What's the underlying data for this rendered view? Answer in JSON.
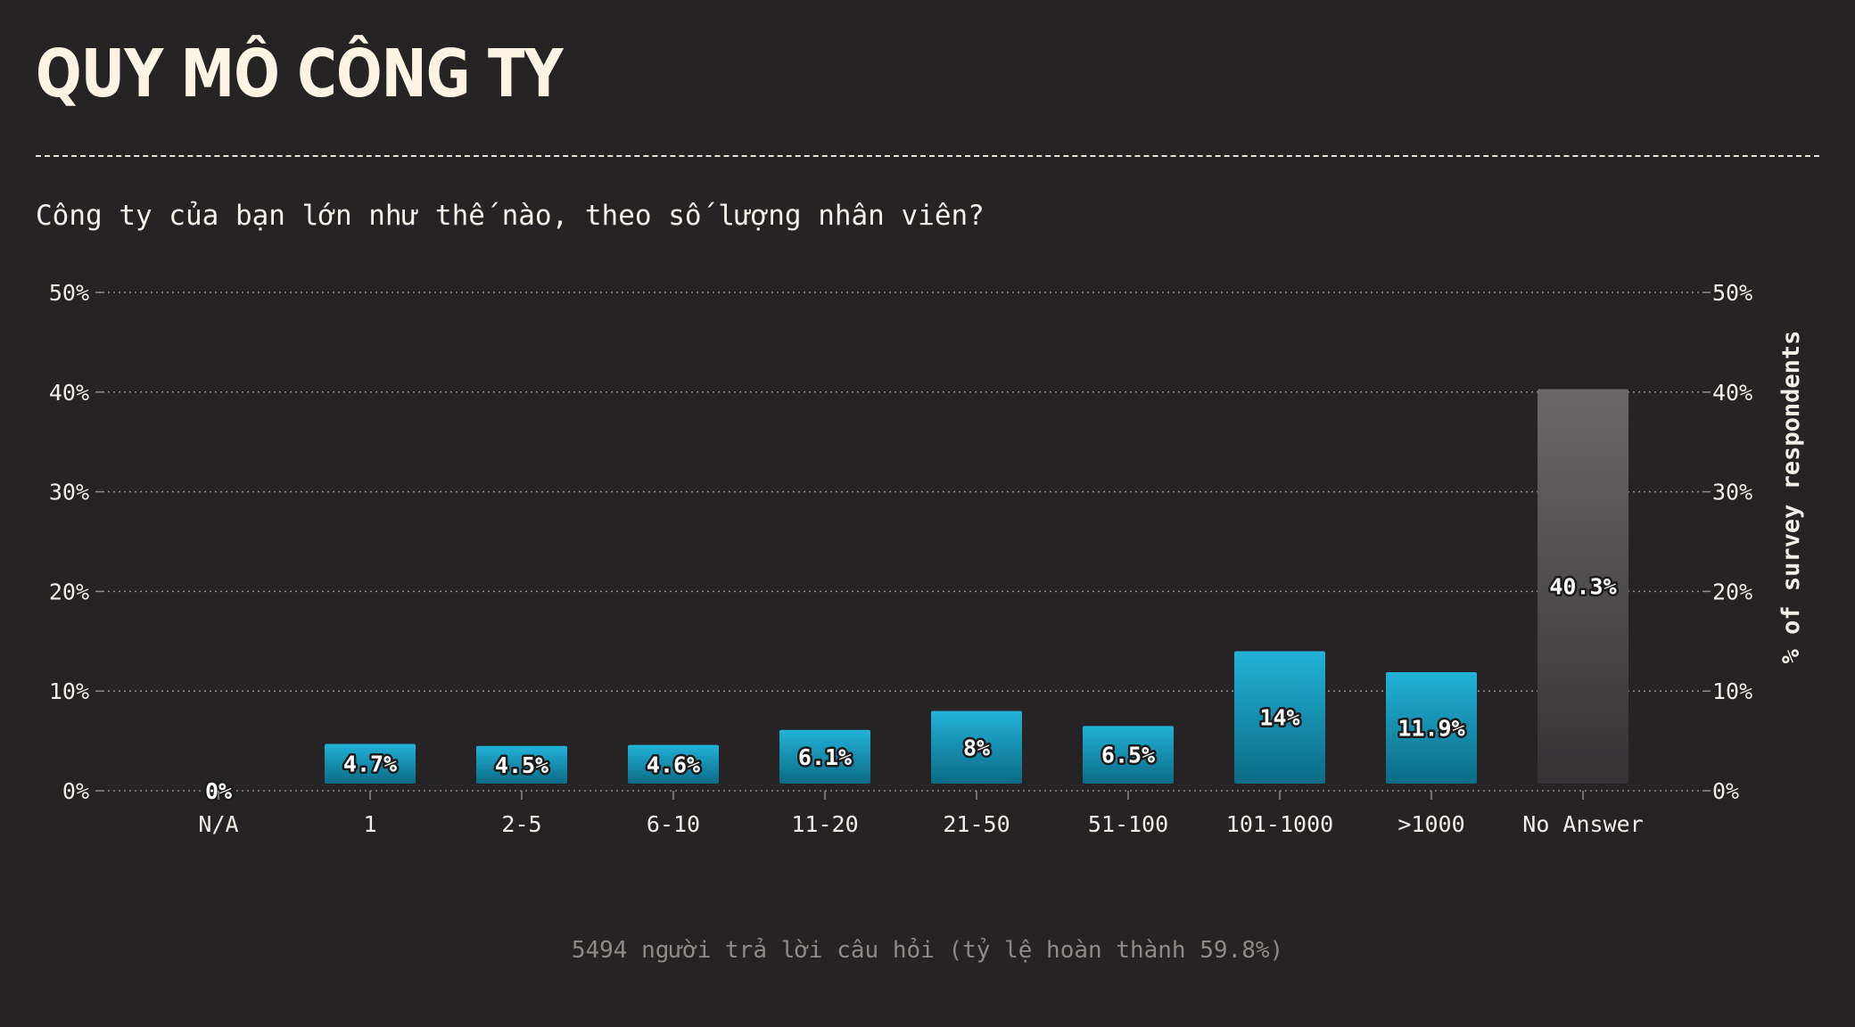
{
  "header": {
    "title": "QUY MÔ CÔNG TY",
    "question": "Công ty của bạn lớn như thế nào, theo số lượng nhân viên?"
  },
  "footer": {
    "note": "5494 người trả lời câu hỏi (tỷ lệ hoàn thành 59.8%)"
  },
  "colors": {
    "background": "#252324",
    "bar_top": "#22b2d8",
    "bar_bottom": "#0b6b86",
    "no_answer_top": "#6a6868",
    "no_answer_bottom": "#343233",
    "grid": "#8f8c88",
    "text": "#f2efe9"
  },
  "chart_data": {
    "type": "bar",
    "categories": [
      "N/A",
      "1",
      "2-5",
      "6-10",
      "11-20",
      "21-50",
      "51-100",
      "101-1000",
      ">1000",
      "No Answer"
    ],
    "values": [
      0,
      4.7,
      4.5,
      4.6,
      6.1,
      8,
      6.5,
      14,
      11.9,
      40.3
    ],
    "value_labels": [
      "0%",
      "4.7%",
      "4.5%",
      "4.6%",
      "6.1%",
      "8%",
      "6.5%",
      "14%",
      "11.9%",
      "40.3%"
    ],
    "y_ticks": [
      0,
      10,
      20,
      30,
      40,
      50
    ],
    "y_tick_labels": [
      "0%",
      "10%",
      "20%",
      "30%",
      "40%",
      "50%"
    ],
    "ylim": [
      0,
      50
    ],
    "ylabel": "% of survey respondents",
    "xlabel": "",
    "grid": true,
    "highlight_last": true
  }
}
